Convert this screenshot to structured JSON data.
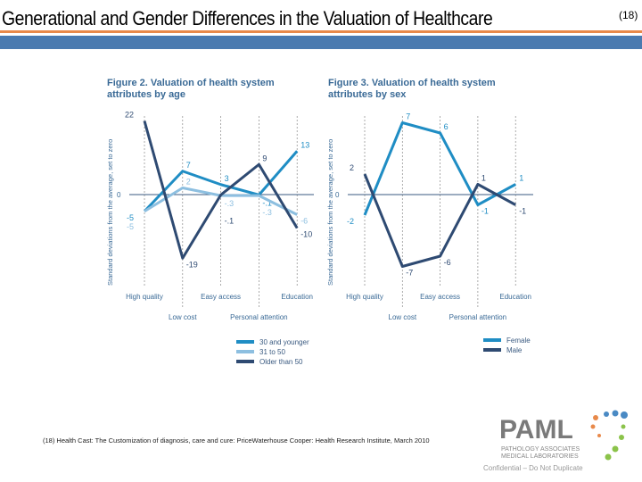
{
  "header": {
    "title": "Generational and Gender Differences in the Valuation of Healthcare",
    "ref": "(18)"
  },
  "footer": {
    "footnote": "(18) Health Cast: The Customization of diagnosis, care and cure: PriceWaterhouse Cooper: Health Research Institute, March 2010",
    "logo": "PAML",
    "logo_sub1": "PATHOLOGY ASSOCIATES",
    "logo_sub2": "MEDICAL LABORATORIES",
    "confidential": "Confidential – Do Not Duplicate"
  },
  "chart_data": [
    {
      "type": "line",
      "title": "Figure 2. Valuation of health system attributes by age",
      "ylabel": "Standard deviations from the average, set to zero",
      "categories": [
        "High quality",
        "Low cost",
        "Easy access",
        "Personal attention",
        "Education"
      ],
      "legend": "bottom-right",
      "series": [
        {
          "name": "30 and younger",
          "color": "#1f8dc4",
          "values": [
            -5,
            7,
            3,
            -0.1,
            13
          ],
          "labels": [
            "-5",
            "7",
            "3",
            "-.1",
            "13"
          ]
        },
        {
          "name": "31 to 50",
          "color": "#8dbfe0",
          "values": [
            -5,
            2,
            -0.3,
            -0.3,
            -6
          ],
          "labels": [
            "-5",
            "2",
            "-.3",
            "-.3",
            "-6"
          ]
        },
        {
          "name": "Older than 50",
          "color": "#2e4a72",
          "values": [
            22,
            -19,
            -0.1,
            9,
            -10
          ],
          "labels": [
            "22",
            "-19",
            "-.1",
            "9",
            "-10"
          ]
        }
      ]
    },
    {
      "type": "line",
      "title": "Figure 3. Valuation of health system attributes by sex",
      "ylabel": "Standard deviations from the average, set to zero",
      "categories": [
        "High quality",
        "Low cost",
        "Easy access",
        "Personal attention",
        "Education"
      ],
      "legend": "bottom-right",
      "series": [
        {
          "name": "Female",
          "color": "#1f8dc4",
          "values": [
            -2,
            7,
            6,
            -1,
            1
          ],
          "labels": [
            "-2",
            "7",
            "6",
            "-1",
            "1"
          ]
        },
        {
          "name": "Male",
          "color": "#2e4a72",
          "values": [
            2,
            -7,
            -6,
            1,
            -1
          ],
          "labels": [
            "2",
            "-7",
            "-6",
            "1",
            "-1"
          ]
        }
      ]
    }
  ]
}
